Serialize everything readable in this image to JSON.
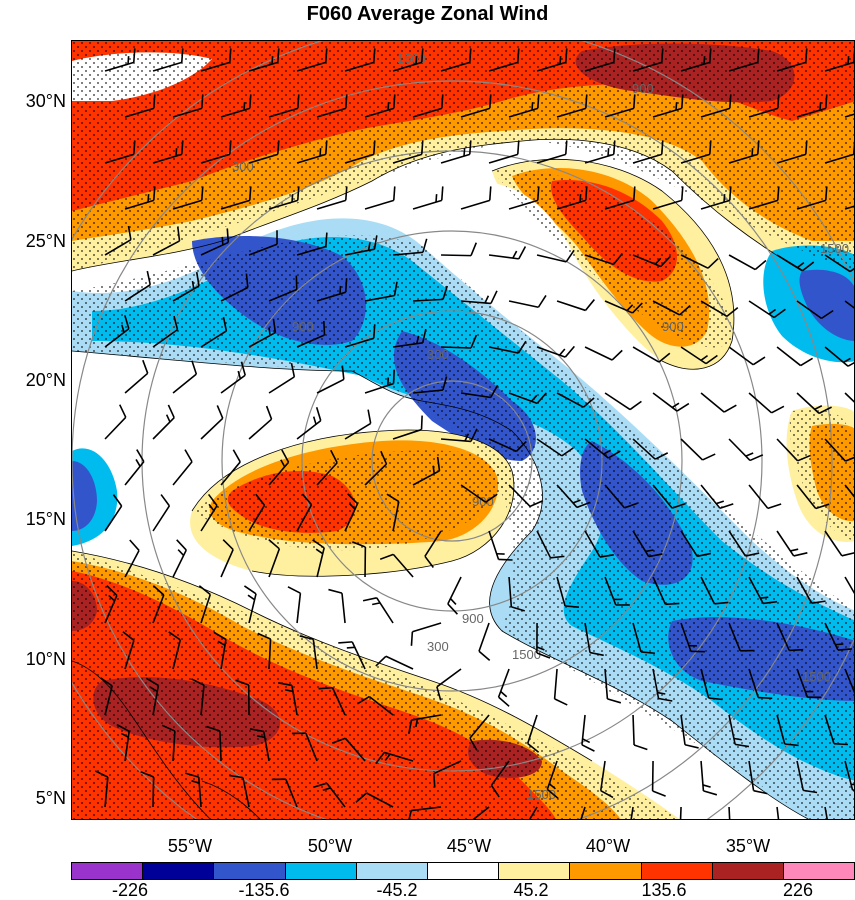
{
  "title": "F060 Average Zonal Wind",
  "lat_labels": [
    "30°N",
    "25°N",
    "20°N",
    "15°N",
    "10°N",
    "5°N"
  ],
  "lon_labels": [
    "55°W",
    "50°W",
    "45°W",
    "40°W",
    "35°W"
  ],
  "ring_labels": [
    "300",
    "900",
    "1500",
    "300",
    "900",
    "1500",
    "900",
    "300",
    "900",
    "1500",
    "1500",
    "1500",
    "900"
  ],
  "colorbar": {
    "colors": [
      "#9933cc",
      "#000099",
      "#3355cc",
      "#00bbee",
      "#aaddf5",
      "#ffffff",
      "#fff0a0",
      "#ff9900",
      "#ff3300",
      "#aa2222",
      "#ff88bb"
    ],
    "labels": [
      "-226",
      "-135.6",
      "-45.2",
      "45.2",
      "135.6",
      "226"
    ]
  }
}
